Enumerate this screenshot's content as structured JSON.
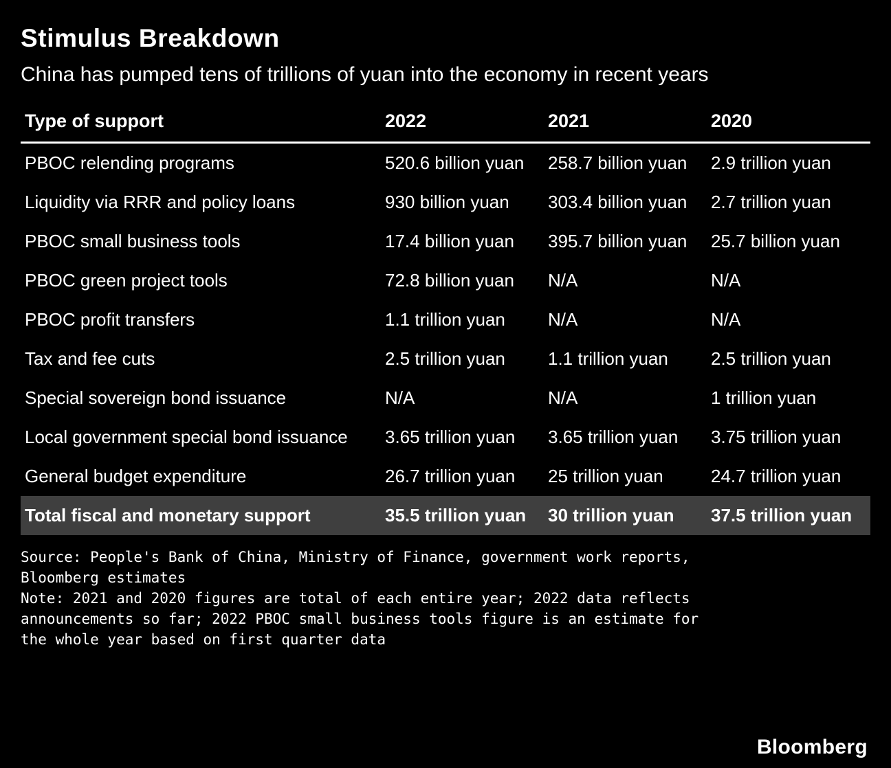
{
  "header": {
    "title": "Stimulus Breakdown",
    "subtitle": "China has pumped tens of trillions of yuan into the economy in recent years"
  },
  "chart_data": {
    "type": "table",
    "title": "Stimulus Breakdown",
    "subtitle": "China has pumped tens of trillions of yuan into the economy in recent years",
    "columns": [
      "Type of support",
      "2022",
      "2021",
      "2020"
    ],
    "rows": [
      [
        "PBOC relending programs",
        "520.6 billion yuan",
        "258.7 billion yuan",
        "2.9 trillion yuan"
      ],
      [
        "Liquidity via RRR and policy loans",
        "930 billion yuan",
        "303.4 billion yuan",
        "2.7 trillion yuan"
      ],
      [
        "PBOC small business tools",
        "17.4 billion yuan",
        "395.7 billion yuan",
        "25.7 billion yuan"
      ],
      [
        "PBOC green project tools",
        "72.8 billion yuan",
        "N/A",
        "N/A"
      ],
      [
        "PBOC profit transfers",
        "1.1 trillion yuan",
        "N/A",
        "N/A"
      ],
      [
        "Tax and fee cuts",
        "2.5 trillion yuan",
        "1.1 trillion yuan",
        "2.5 trillion yuan"
      ],
      [
        "Special sovereign bond issuance",
        "N/A",
        "N/A",
        "1 trillion yuan"
      ],
      [
        "Local government special bond issuance",
        "3.65 trillion yuan",
        "3.65 trillion yuan",
        "3.75 trillion yuan"
      ],
      [
        "General budget expenditure",
        "26.7 trillion yuan",
        "25 trillion yuan",
        "24.7 trillion yuan"
      ]
    ],
    "total_row": [
      "Total fiscal and monetary support",
      "35.5 trillion yuan",
      "30 trillion yuan",
      "37.5 trillion yuan"
    ],
    "layout": {
      "header_rule": true,
      "row_gridlines": false,
      "total_row_highlighted": true
    }
  },
  "footer": {
    "source": "Source: People's Bank of China, Ministry of Finance, government work reports, Bloomberg estimates",
    "note": "Note: 2021 and 2020 figures are total of each entire year; 2022 data reflects announcements so far; 2022 PBOC small business tools figure is an estimate for the whole year based on first quarter data",
    "brand": "Bloomberg"
  },
  "colors": {
    "background": "#000000",
    "text": "#ffffff",
    "total_row_background": "#3f3f3f",
    "header_rule": "#ffffff"
  }
}
